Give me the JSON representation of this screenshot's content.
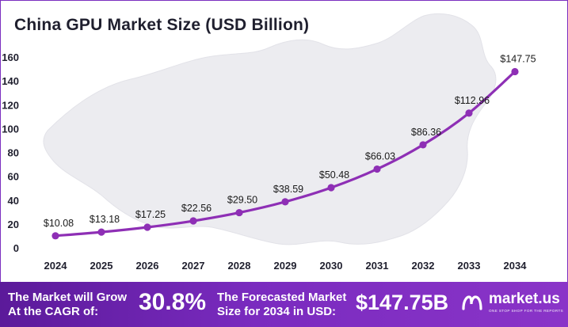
{
  "title": "China GPU Market Size (USD Billion)",
  "colors": {
    "line": "#8e2fb5",
    "marker": "#8e2fb5",
    "map": "#ececf0",
    "footer_start": "#5b1a9a",
    "footer_end": "#8a34c8",
    "border": "#7b2fbf"
  },
  "chart_data": {
    "type": "line",
    "title": "China GPU Market Size (USD Billion)",
    "xlabel": "",
    "ylabel": "",
    "x": [
      "2024",
      "2025",
      "2026",
      "2027",
      "2028",
      "2029",
      "2030",
      "2031",
      "2032",
      "2033",
      "2034"
    ],
    "series": [
      {
        "values": [
          10.08,
          13.18,
          17.25,
          22.56,
          29.5,
          38.59,
          50.48,
          66.03,
          86.36,
          112.96,
          147.75
        ],
        "labels": [
          "$10.08",
          "$13.18",
          "$17.25",
          "$22.56",
          "$29.50",
          "$38.59",
          "$50.48",
          "$66.03",
          "$86.36",
          "$112.96",
          "$147.75"
        ]
      }
    ],
    "ylim": [
      0,
      160
    ],
    "yticks": [
      0,
      20,
      40,
      60,
      80,
      100,
      120,
      140,
      160
    ],
    "grid": false,
    "legend": "none"
  },
  "footer": {
    "cagr_label_line1": "The Market will Grow",
    "cagr_label_line2": "At the CAGR of:",
    "cagr_value": "30.8%",
    "forecast_label_line1": "The Forecasted Market",
    "forecast_label_line2": "Size for 2034 in USD:",
    "forecast_value": "$147.75B",
    "brand_name": "market.us",
    "brand_tagline": "ONE STOP SHOP FOR THE REPORTS"
  }
}
